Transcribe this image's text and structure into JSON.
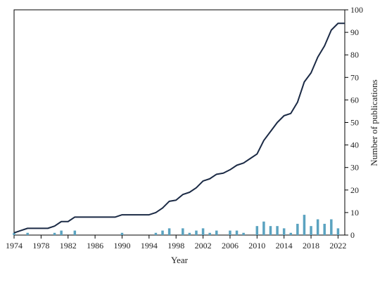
{
  "chart_data": {
    "type": "bar+line",
    "xlabel": "Year",
    "ylabel": "Number of publications",
    "xlim": [
      1974,
      2023
    ],
    "ylim": [
      0,
      100
    ],
    "x_ticks": [
      1974,
      1978,
      1982,
      1986,
      1990,
      1994,
      1998,
      2002,
      2006,
      2010,
      2014,
      2018,
      2022
    ],
    "y_ticks": [
      0,
      10,
      20,
      30,
      40,
      50,
      60,
      70,
      80,
      90,
      100
    ],
    "y_axis_side": "right",
    "grid": false,
    "legend": "none",
    "bars": {
      "color": "#5ba3c0",
      "x": [
        1974,
        1976,
        1980,
        1981,
        1983,
        1990,
        1995,
        1996,
        1997,
        1999,
        2000,
        2001,
        2002,
        2003,
        2004,
        2006,
        2007,
        2008,
        2010,
        2011,
        2012,
        2013,
        2014,
        2015,
        2016,
        2017,
        2018,
        2019,
        2020,
        2021,
        2022
      ],
      "values": [
        1,
        1,
        1,
        2,
        2,
        1,
        1,
        2,
        3,
        3,
        1,
        2,
        3,
        1,
        2,
        2,
        2,
        1,
        4,
        6,
        4,
        4,
        3,
        1,
        5,
        9,
        4,
        7,
        5,
        7,
        3
      ]
    },
    "line": {
      "color": "#1b2a45",
      "x": [
        1974,
        1975,
        1976,
        1977,
        1978,
        1979,
        1980,
        1981,
        1982,
        1983,
        1984,
        1985,
        1986,
        1987,
        1988,
        1989,
        1990,
        1991,
        1992,
        1993,
        1994,
        1995,
        1996,
        1997,
        1998,
        1999,
        2000,
        2001,
        2002,
        2003,
        2004,
        2005,
        2006,
        2007,
        2008,
        2009,
        2010,
        2011,
        2012,
        2013,
        2014,
        2015,
        2016,
        2017,
        2018,
        2019,
        2020,
        2021,
        2022,
        2023
      ],
      "values": [
        1,
        2,
        3,
        3,
        3,
        3,
        4,
        6,
        6,
        8,
        8,
        8,
        8,
        8,
        8,
        8,
        9,
        9,
        9,
        9,
        9,
        10,
        12,
        15,
        15.5,
        18,
        19,
        21,
        24,
        25,
        27,
        27.5,
        29,
        31,
        32,
        34,
        36,
        42,
        46,
        50,
        53,
        54,
        59,
        68,
        72,
        79,
        84,
        91,
        94,
        94
      ]
    }
  }
}
